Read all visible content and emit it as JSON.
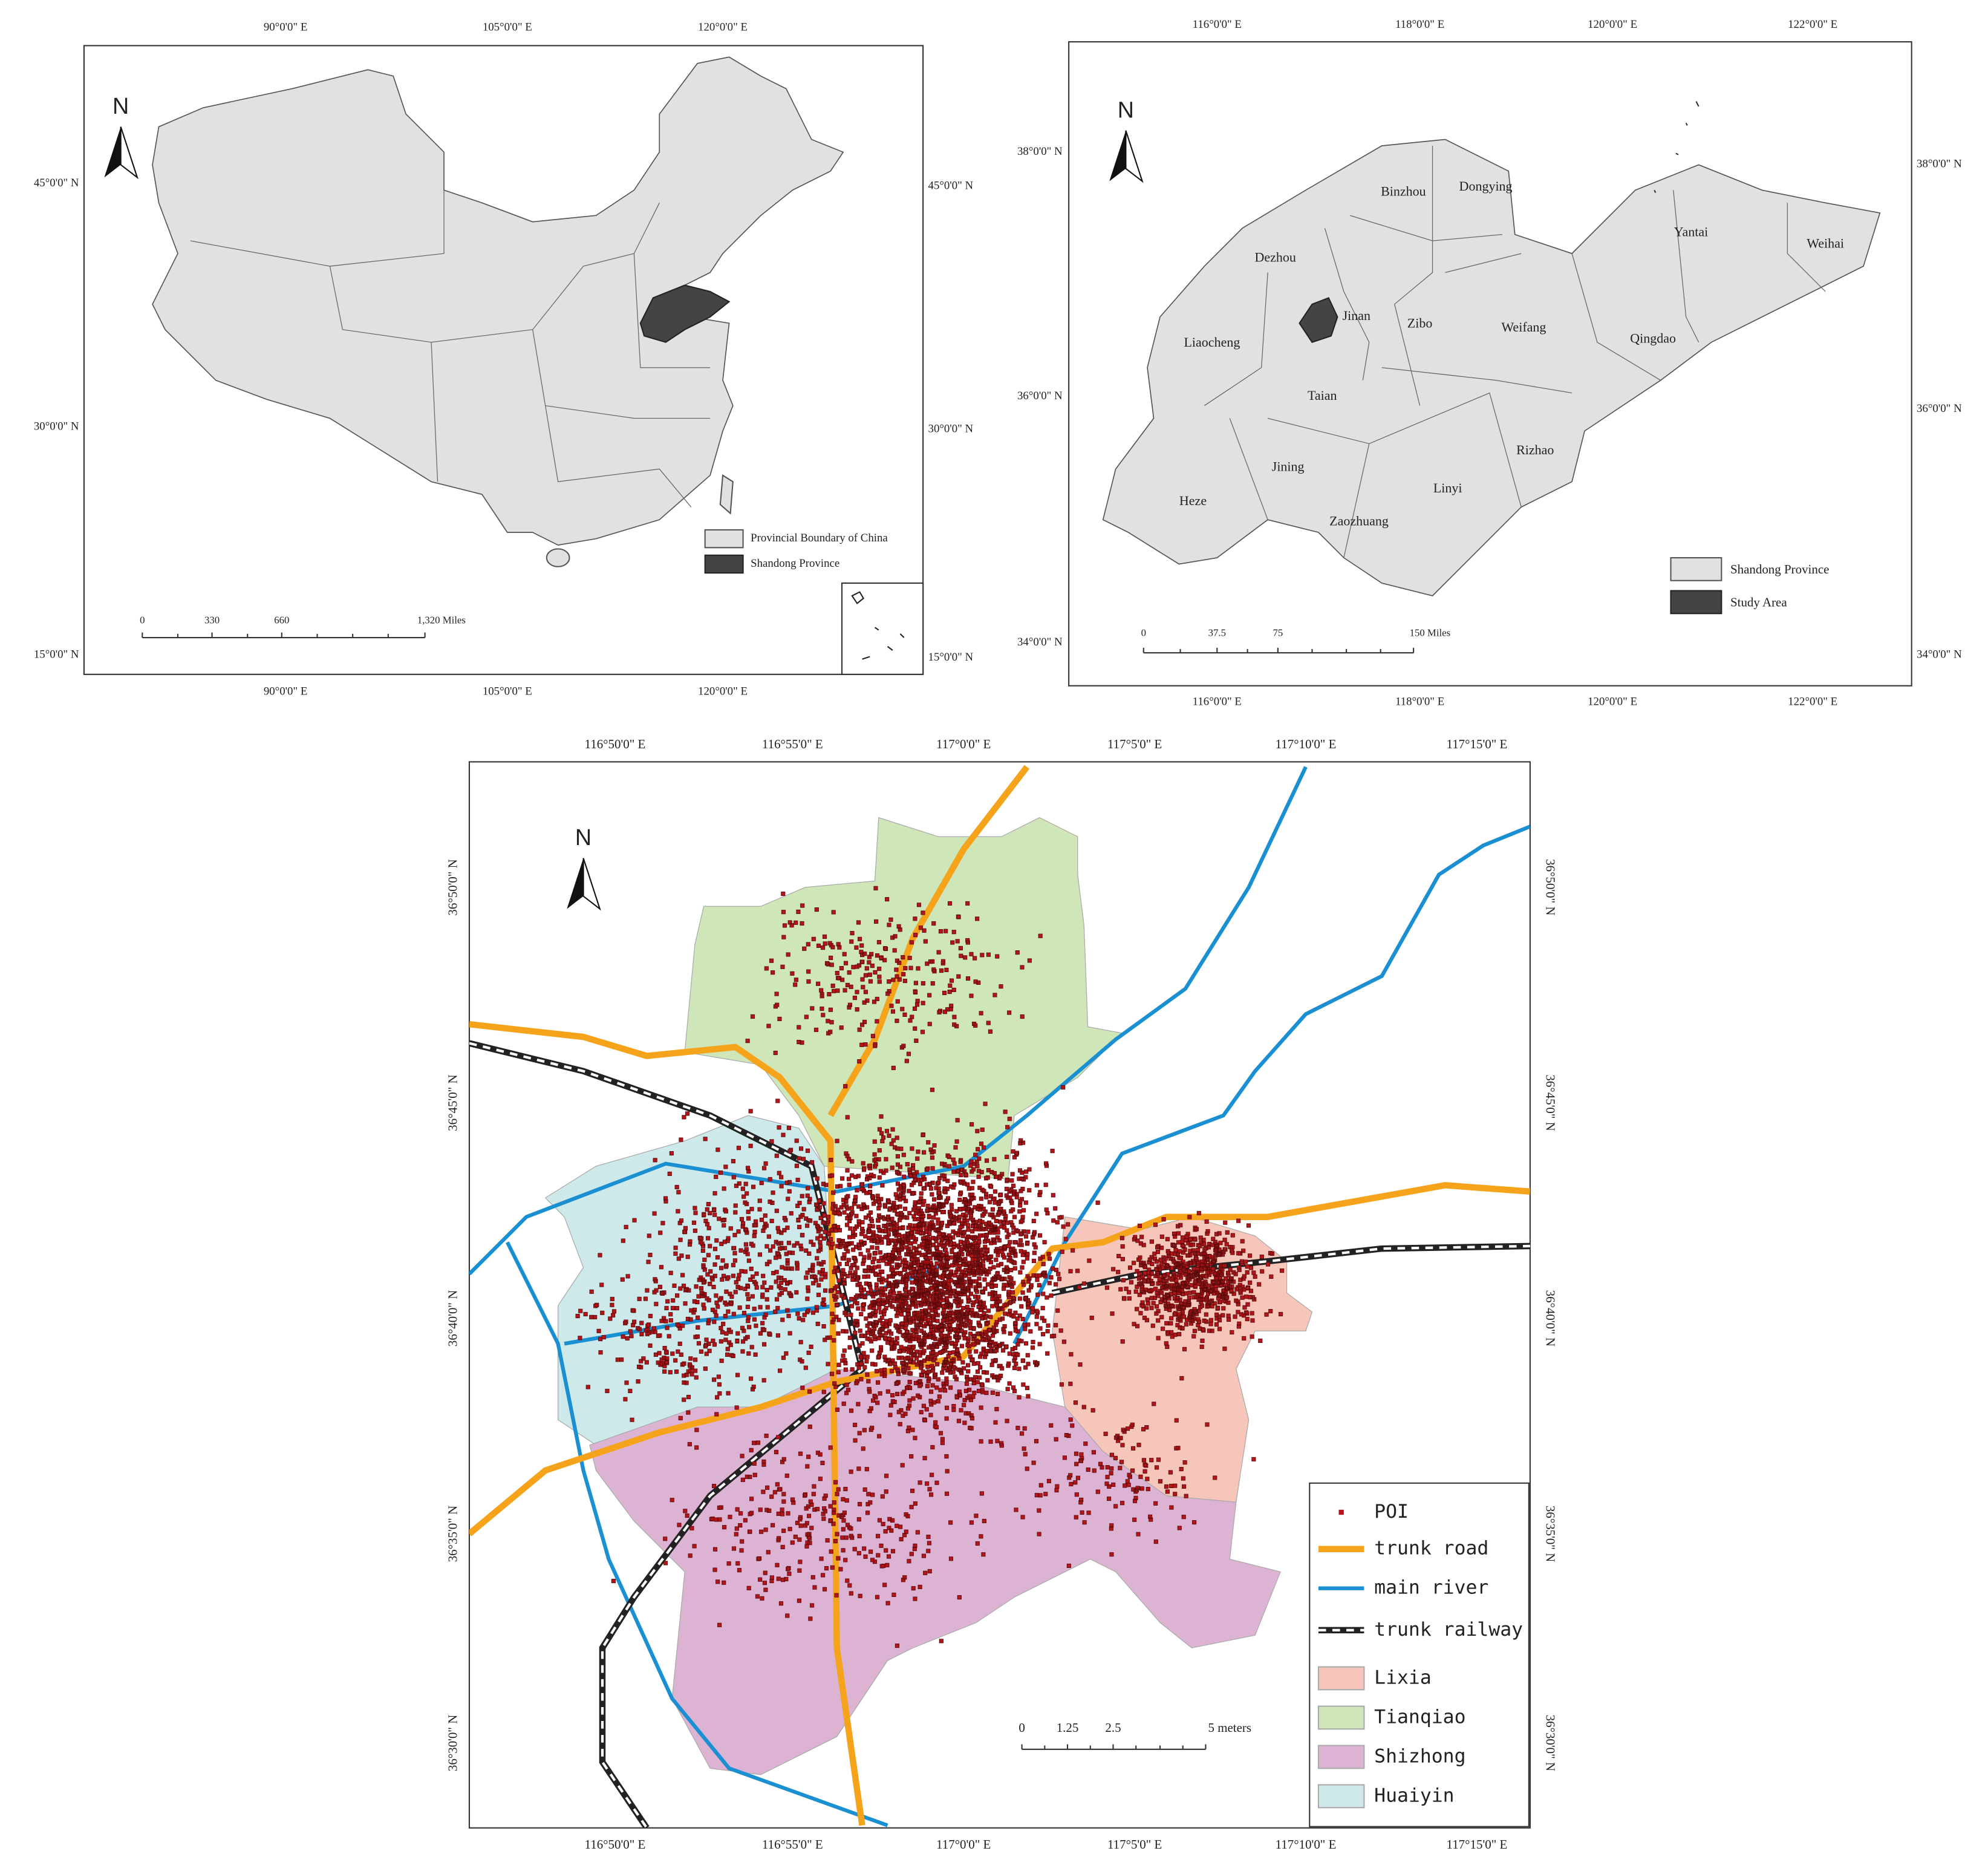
{
  "china_map": {
    "north": "N",
    "x_ticks": [
      "90°0'0\" E",
      "105°0'0\" E",
      "120°0'0\" E"
    ],
    "y_ticks": [
      "45°0'0\" N",
      "30°0'0\" N",
      "15°0'0\" N"
    ],
    "legend": [
      "Provincial Boundary of China",
      "Shandong Province"
    ],
    "scale_bar": [
      "0",
      "330",
      "660",
      "1,320 Miles"
    ]
  },
  "shandong_map": {
    "north": "N",
    "x_ticks": [
      "116°0'0\" E",
      "118°0'0\" E",
      "120°0'0\" E",
      "122°0'0\" E"
    ],
    "y_ticks": [
      "38°0'0\" N",
      "36°0'0\" N",
      "34°0'0\" N"
    ],
    "cities": [
      "Binzhou",
      "Dongying",
      "Dezhou",
      "Yantai",
      "Weihai",
      "Jinan",
      "Zibo",
      "Weifang",
      "Qingdao",
      "Liaocheng",
      "Taian",
      "Rizhao",
      "Jining",
      "Linyi",
      "Heze",
      "Zaozhuang"
    ],
    "legend": [
      "Shandong Province",
      "Study Area"
    ],
    "scale_bar": [
      "0",
      "37.5",
      "75",
      "150 Miles"
    ]
  },
  "jinan_map": {
    "north": "N",
    "x_ticks": [
      "116°50'0\" E",
      "116°55'0\" E",
      "117°0'0\" E",
      "117°5'0\" E",
      "117°10'0\" E",
      "117°15'0\" E"
    ],
    "y_ticks": [
      "36°50'0\" N",
      "36°45'0\" N",
      "36°40'0\" N",
      "36°35'0\" N",
      "36°30'0\" N"
    ],
    "legend": [
      "POI",
      "trunk road",
      "main river",
      "trunk railway",
      "Lixia",
      "Tianqiao",
      "Shizhong",
      "Huaiyin"
    ],
    "scale_bar": [
      "0",
      "1.25",
      "2.5",
      "5 meters"
    ]
  }
}
